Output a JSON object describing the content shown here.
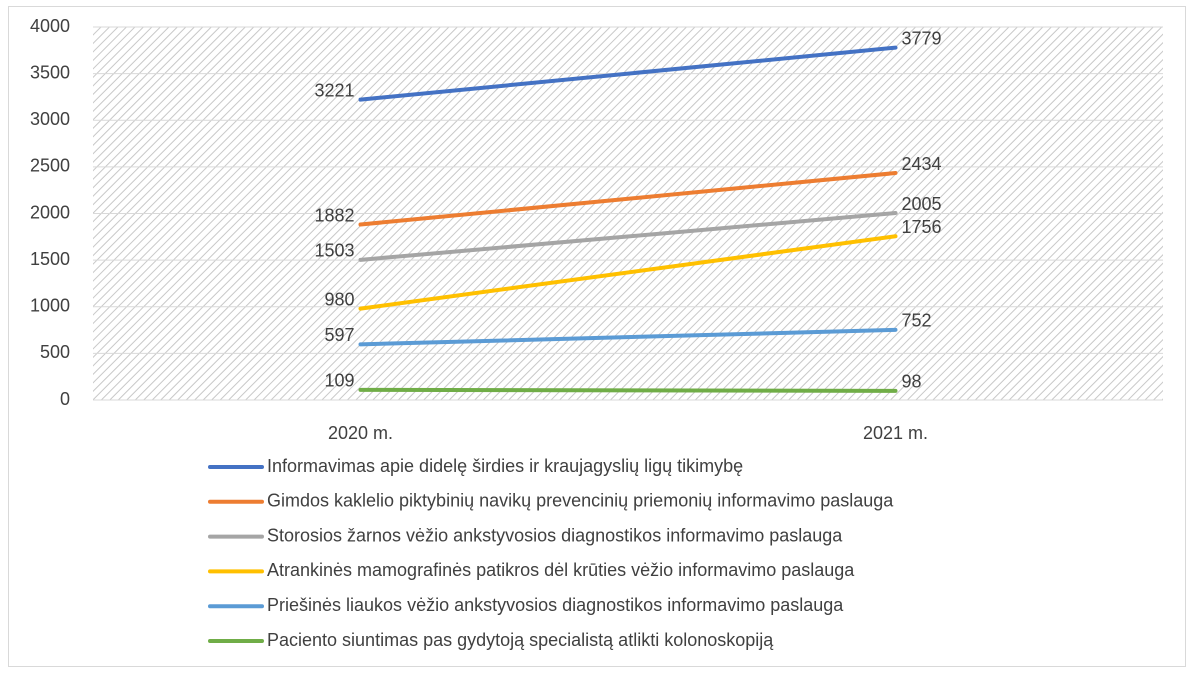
{
  "chart_data": {
    "type": "line",
    "categories": [
      "2020 m.",
      "2021 m."
    ],
    "series": [
      {
        "name": "Informavimas apie didelę širdies ir kraujagyslių ligų tikimybę",
        "color": "#4472c4",
        "values": [
          3221,
          3779
        ]
      },
      {
        "name": "Gimdos kaklelio piktybinių navikų prevencinių priemonių informavimo paslauga",
        "color": "#ed7d31",
        "values": [
          1882,
          2434
        ]
      },
      {
        "name": "Storosios žarnos vėžio ankstyvosios diagnostikos informavimo paslauga",
        "color": "#a5a5a5",
        "values": [
          1503,
          2005
        ]
      },
      {
        "name": "Atrankinės mamografinės patikros dėl krūties vėžio informavimo paslauga",
        "color": "#ffc000",
        "values": [
          980,
          1756
        ]
      },
      {
        "name": "Priešinės liaukos vėžio ankstyvosios diagnostikos informavimo paslauga",
        "color": "#5b9bd5",
        "values": [
          597,
          752
        ]
      },
      {
        "name": "Paciento siuntimas pas gydytoją specialistą atlikti kolonoskopiją",
        "color": "#70ad47",
        "values": [
          109,
          98
        ]
      }
    ],
    "ylim": [
      0,
      4000
    ],
    "yticks": [
      0,
      500,
      1000,
      1500,
      2000,
      2500,
      3000,
      3500,
      4000
    ],
    "grid": true,
    "legend": "bottom"
  }
}
